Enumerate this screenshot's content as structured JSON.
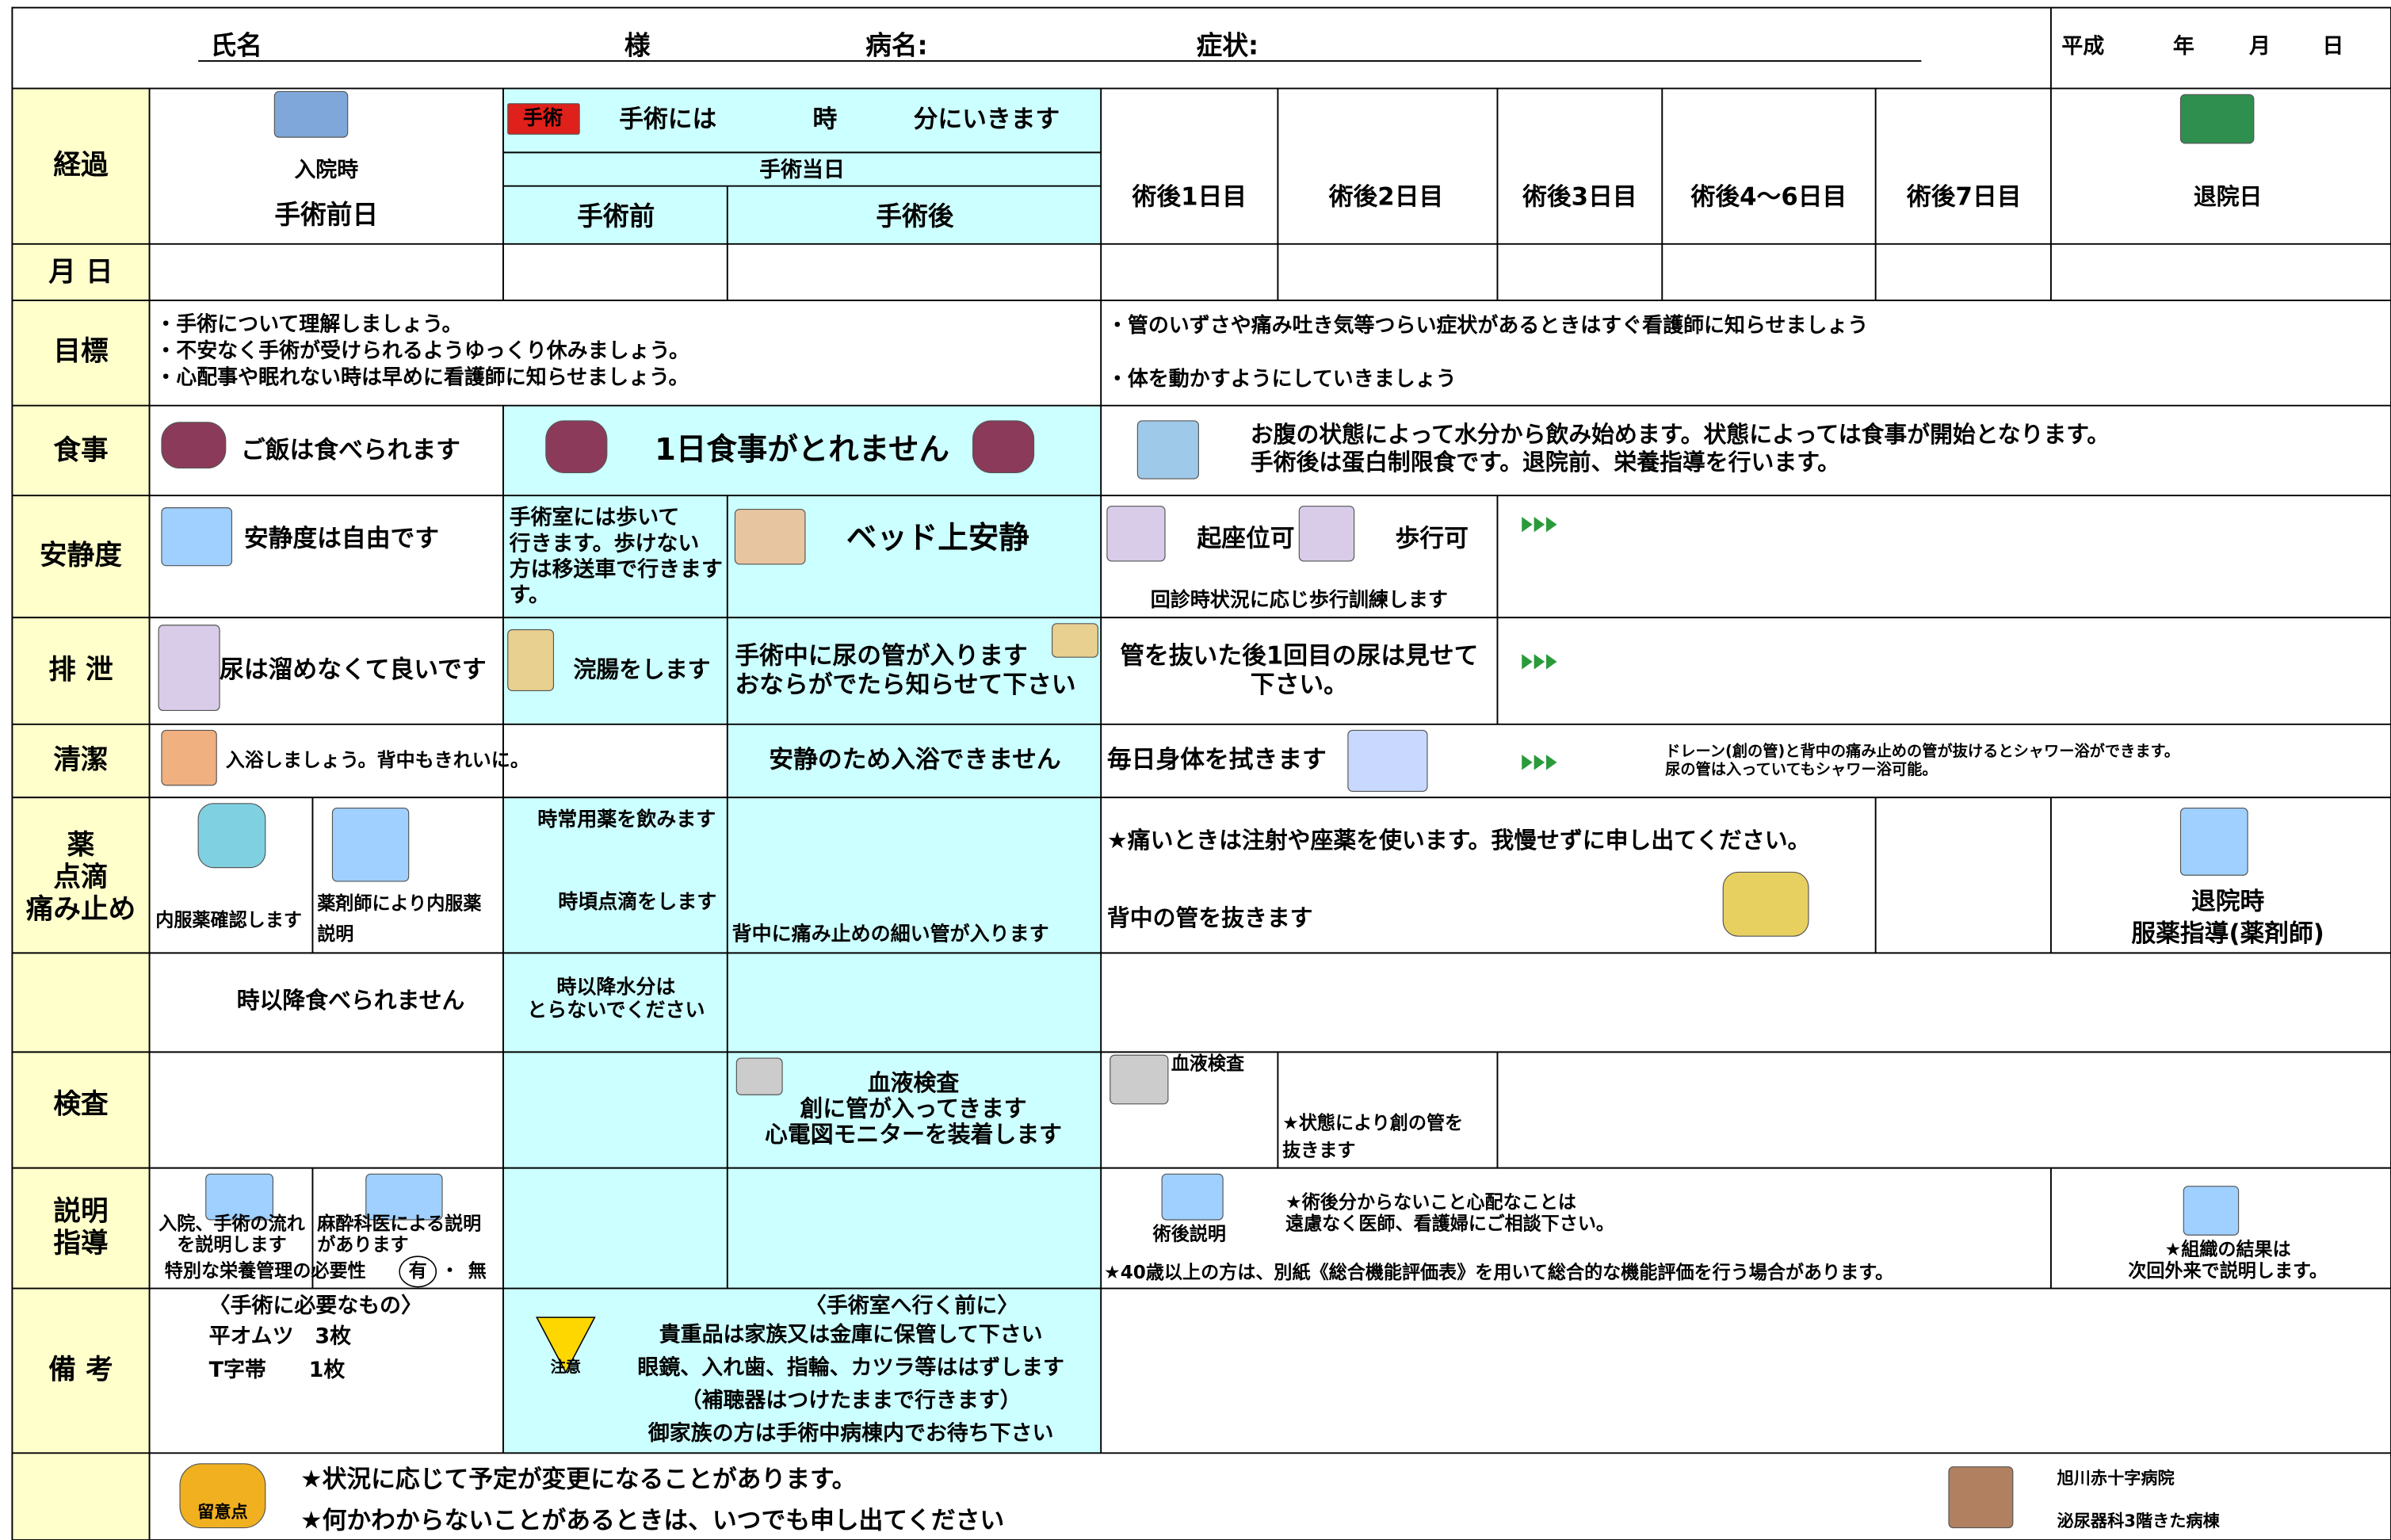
{
  "header": {
    "name": "氏名",
    "honorific": "様",
    "disease": "病名:",
    "symptom": "症状:",
    "era": "平成",
    "year": "年",
    "month": "月",
    "day": "日"
  },
  "columns": {
    "admission": "入院時",
    "pre_op_day": "手術前日",
    "surgery_badge": "手術",
    "surgery_time": [
      "手術には",
      "時",
      "分にいきます"
    ],
    "surgery_day": "手術当日",
    "pre_op": "手術前",
    "post_op": "手術後",
    "post_days": [
      "術後1日目",
      "術後2日目",
      "術後3日目",
      "術後4〜6日目",
      "術後7日目"
    ],
    "discharge": "退院日"
  },
  "rows": [
    "経過",
    "月 日",
    "目標",
    "食事",
    "安静度",
    "排 泄",
    "清潔",
    [
      "薬",
      "点滴",
      "痛み止め"
    ],
    "検査",
    [
      "説明",
      "指導"
    ],
    "備 考"
  ],
  "goals": {
    "pre": [
      "・手術について理解しましょう。",
      "・不安なく手術が受けられるようゆっくり休みましょう。",
      "・心配事や眠れない時は早めに看護師に知らせましょう。"
    ],
    "post": [
      "・管のいずさや痛み吐き気等つらい症状があるときはすぐ看護師に知らせましょう",
      "・体を動かすようにしていきましょう"
    ]
  },
  "meal": {
    "pre": "ご飯は食べられます",
    "surgery": "1日食事がとれません",
    "post": [
      "お腹の状態によって水分から飲み始めます。状態によっては食事が開始となります。",
      "手術後は蛋白制限食です。退院前、栄養指導を行います。"
    ]
  },
  "rest": {
    "pre": "安静度は自由です",
    "surgery_pre": [
      "手術室には歩いて",
      "行きます。歩けない",
      "方は移送車で行きます",
      "す。"
    ],
    "surgery_post": "ベッド上安静",
    "sit": "起座位可",
    "walk": "歩行可",
    "rounds": "回診時状況に応じ歩行訓練します"
  },
  "excretion": {
    "pre": "尿は溜めなくて良いです",
    "enema": "浣腸をします",
    "surgery_post": [
      "手術中に尿の管が入ります",
      "おならがでたら知らせて下さい"
    ],
    "post": [
      "管を抜いた後1回目の尿は見せて",
      "下さい。"
    ]
  },
  "hygiene": {
    "pre": "入浴しましょう。背中もきれいに。",
    "surgery": "安静のため入浴できません",
    "post": "毎日身体を拭きます",
    "shower": [
      "ドレーン(創の管)と背中の痛み止めの管が抜けるとシャワー浴ができます。",
      "尿の管は入っていてもシャワー浴可能。"
    ]
  },
  "medicine": {
    "check": "内服薬確認します",
    "explain": [
      "薬剤師により内服薬",
      "説明"
    ],
    "regular": "時常用薬を飲みます",
    "drip": "時頃点滴をします",
    "epidural": "背中に痛み止めの細い管が入ります",
    "pain": "★痛いときは注射や座薬を使います。我慢せずに申し出てください。",
    "remove": "背中の管を抜きます",
    "discharge": [
      "退院時",
      "服薬指導(薬剤師)"
    ]
  },
  "fasting": {
    "food": "時以降食べられません",
    "water": [
      "時以降水分は",
      "とらないでください"
    ]
  },
  "tests": {
    "surgery": [
      "血液検査",
      "創に管が入ってきます",
      "心電図モニターを装着します"
    ],
    "post": "血液検査",
    "drain": [
      "★状態により創の管を",
      "抜きます"
    ]
  },
  "explanation": {
    "flow": [
      "入院、手術の流れ",
      "を説明します"
    ],
    "anesthesia": [
      "麻酔科医による説明",
      "があります"
    ],
    "nutrition": "特別な栄養管理の必要性",
    "yes": "有",
    "sep": "・",
    "no": "無",
    "post": "術後説明",
    "questions": [
      "★術後分からないこと心配なことは",
      "遠慮なく医師、看護婦にご相談下さい。"
    ],
    "evaluation": "★40歳以上の方は、別紙《総合機能評価表》を用いて総合的な機能評価を行う場合があります。",
    "pathology": [
      "★組織の結果は",
      "次回外来で説明します。"
    ]
  },
  "remarks": {
    "needed_title": "〈手術に必要なもの〉",
    "items": [
      "平オムツ　3枚",
      "T字帯　　1枚"
    ],
    "caution": "注意",
    "before_or": "〈手術室へ行く前に〉",
    "or_notes": [
      "貴重品は家族又は金庫に保管して下さい",
      "眼鏡、入れ歯、指輪、カツラ等ははずします",
      "（補聴器はつけたままで行きます）",
      "御家族の方は手術中病棟内でお待ち下さい"
    ]
  },
  "footer": {
    "badge": "留意点",
    "notes": [
      "★状況に応じて予定が変更になることがあります。",
      "★何かわからないことがあるときは、いつでも申し出てください"
    ],
    "hospital": "旭川赤十字病院",
    "ward": "泌尿器科3階きた病棟"
  }
}
